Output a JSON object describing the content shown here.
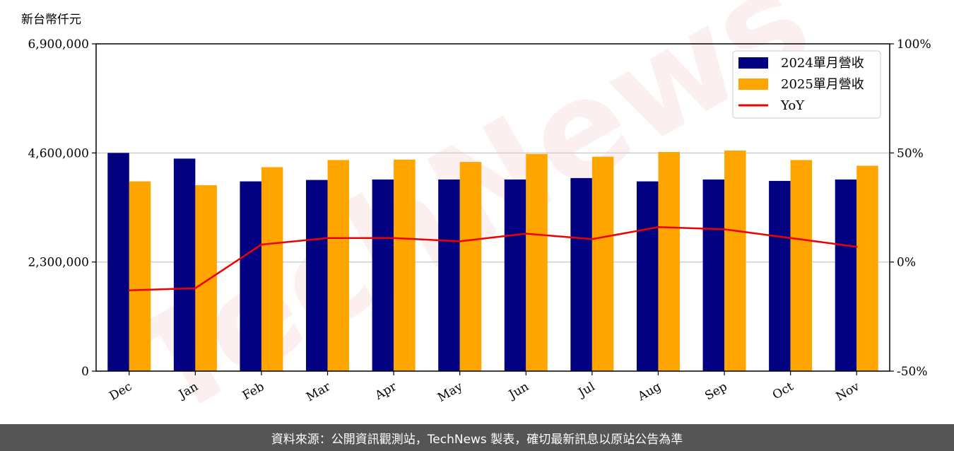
{
  "chart_data": {
    "type": "bar",
    "unit_label": "新台幣仟元",
    "categories": [
      "Dec",
      "Jan",
      "Feb",
      "Mar",
      "Apr",
      "May",
      "Jun",
      "Jul",
      "Aug",
      "Sep",
      "Oct",
      "Nov"
    ],
    "series": [
      {
        "name": "2024單月營收",
        "type": "bar",
        "color": "#000080",
        "values": [
          4600000,
          4480000,
          4000000,
          4030000,
          4040000,
          4040000,
          4040000,
          4070000,
          4000000,
          4040000,
          4010000,
          4040000
        ]
      },
      {
        "name": "2025單月營收",
        "type": "bar",
        "color": "#ffa500",
        "values": [
          4000000,
          3920000,
          4300000,
          4450000,
          4460000,
          4410000,
          4580000,
          4520000,
          4620000,
          4650000,
          4450000,
          4330000
        ]
      },
      {
        "name": "YoY",
        "type": "line",
        "axis": "right",
        "color": "#ee0000",
        "values": [
          -13,
          -12,
          8,
          11,
          11,
          9.5,
          13,
          10.5,
          16,
          15,
          11,
          7
        ]
      }
    ],
    "left_axis": {
      "ylim": [
        0,
        6900000
      ],
      "ticks": [
        "0",
        "2,300,000",
        "4,600,000",
        "6,900,000"
      ],
      "tick_values": [
        0,
        2300000,
        4600000,
        6900000
      ]
    },
    "right_axis": {
      "ylim": [
        -50,
        100
      ],
      "ticks": [
        "-50%",
        "0%",
        "50%",
        "100%"
      ],
      "tick_values": [
        -50,
        0,
        50,
        100
      ]
    },
    "grid": "horizontal",
    "legend_position": "top-right"
  },
  "watermark": "TechNews",
  "footer": {
    "text": "資料來源：公開資訊觀測站，TechNews 製表，確切最新訊息以原站公告為準"
  }
}
